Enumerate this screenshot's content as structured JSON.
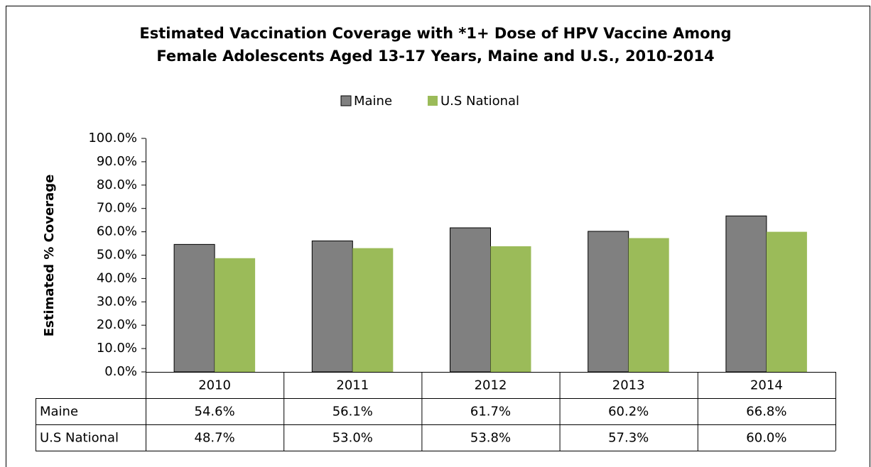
{
  "chart_data": {
    "type": "bar",
    "title": [
      "Estimated Vaccination Coverage with *1+ Dose of HPV Vaccine Among",
      "Female Adolescents Aged 13-17 Years, Maine and U.S., 2010-2014"
    ],
    "y_label": "Estimated % Coverage",
    "categories": [
      "2010",
      "2011",
      "2012",
      "2013",
      "2014"
    ],
    "series": [
      {
        "name": "Maine",
        "color": "#808080",
        "values": [
          54.6,
          56.1,
          61.7,
          60.2,
          66.8
        ],
        "value_labels": [
          "54.6%",
          "56.1%",
          "61.7%",
          "60.2%",
          "66.8%"
        ]
      },
      {
        "name": "U.S National",
        "color": "#9bbb59",
        "values": [
          48.7,
          53.0,
          53.8,
          57.3,
          60.0
        ],
        "value_labels": [
          "48.7%",
          "53.0%",
          "53.8%",
          "57.3%",
          "60.0%"
        ]
      }
    ],
    "ylim": [
      0,
      100
    ],
    "yticks": [
      {
        "value": 0,
        "label": "0.0%"
      },
      {
        "value": 10,
        "label": "10.0%"
      },
      {
        "value": 20,
        "label": "20.0%"
      },
      {
        "value": 30,
        "label": "30.0%"
      },
      {
        "value": 40,
        "label": "40.0%"
      },
      {
        "value": 50,
        "label": "50.0%"
      },
      {
        "value": 60,
        "label": "60.0%"
      },
      {
        "value": 70,
        "label": "70.0%"
      },
      {
        "value": 80,
        "label": "80.0%"
      },
      {
        "value": 90,
        "label": "90.0%"
      },
      {
        "value": 100,
        "label": "100.0%"
      }
    ],
    "legend": "top",
    "grid": false
  }
}
